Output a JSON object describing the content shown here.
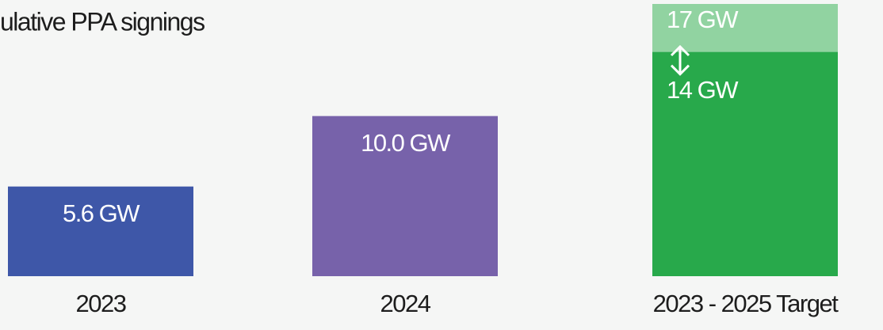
{
  "chart_data": {
    "type": "bar",
    "title": "ulative PPA signings",
    "categories": [
      "2023",
      "2024",
      "2023 - 2025 Target"
    ],
    "values": [
      5.6,
      10.0,
      14
    ],
    "value_labels": [
      "5.6 GW",
      "10.0 GW",
      "14 GW"
    ],
    "colors": [
      "#3e57a8",
      "#7762aa",
      "#28a94b"
    ],
    "range_top": {
      "value": 17,
      "value_label": "17 GW",
      "color": "#91d3a1"
    },
    "ylim": [
      0,
      17
    ]
  }
}
